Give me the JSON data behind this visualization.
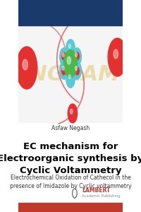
{
  "top_bar_color": "#1a3a6b",
  "bottom_bar_color": "#c0392b",
  "cover_bg": "#ffffff",
  "top_bar_height": 0.12,
  "bottom_bar_height": 0.045,
  "image_bg": "#f0f0f0",
  "author": "Asfaw Negash",
  "title_line1": "EC mechanism for",
  "title_line2": "Electroorganic synthesis by",
  "title_line3": "Cyclic Voltammetry",
  "subtitle": "Electrochemical Oxidation of Cathecol in the\npresence of Imidazole by Cyclic voltammetry",
  "title_fontsize": 9.5,
  "subtitle_fontsize": 5.5,
  "author_fontsize": 5.5,
  "watermark_text": "INGRAM",
  "watermark_color": "#e8d8a0",
  "sphere_red_color": "#e53030",
  "sphere_cyan_color": "#5bc8d8",
  "sphere_green_color": "#4cb84c",
  "sphere_small_red_color": "#e53030",
  "arc_color": "#e05050",
  "lambert_text": "LAMBERT",
  "lambert_sub": "Academic Publishing",
  "lambert_color": "#c0392b"
}
